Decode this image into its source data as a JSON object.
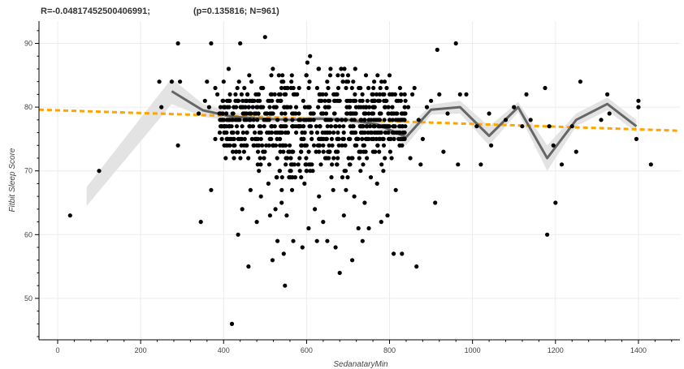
{
  "header": {
    "stat_left": "R=-0.04817452500406991;",
    "stat_right": "(p=0.135816; N=961)"
  },
  "chart_data": {
    "type": "scatter",
    "xlabel": "SedanataryMin",
    "ylabel": "Fitbit Sleep Score",
    "xlim": [
      -45,
      1500
    ],
    "ylim": [
      43.5,
      93.5
    ],
    "xticks": [
      0,
      200,
      400,
      600,
      800,
      1000,
      1200,
      1400
    ],
    "yticks": [
      50,
      60,
      70,
      80,
      90
    ],
    "grid": true,
    "colors": {
      "points": "#000000",
      "trend": "#666666",
      "band": "#e3e3e3",
      "regression": "#ffa500"
    },
    "points": [
      [
        30,
        63
      ],
      [
        100,
        70
      ],
      [
        245,
        84
      ],
      [
        250,
        80
      ],
      [
        275,
        84
      ],
      [
        290,
        90
      ],
      [
        290,
        74
      ],
      [
        295,
        84
      ],
      [
        340,
        79
      ],
      [
        345,
        62
      ],
      [
        355,
        81
      ],
      [
        360,
        84
      ],
      [
        365,
        80
      ],
      [
        370,
        67
      ],
      [
        370,
        90
      ],
      [
        380,
        83
      ],
      [
        380,
        75
      ],
      [
        385,
        82
      ],
      [
        390,
        79
      ],
      [
        400,
        84
      ],
      [
        402,
        77
      ],
      [
        405,
        72
      ],
      [
        410,
        74
      ],
      [
        412,
        86
      ],
      [
        415,
        81
      ],
      [
        420,
        46
      ],
      [
        425,
        72
      ],
      [
        430,
        80
      ],
      [
        430,
        73
      ],
      [
        435,
        60
      ],
      [
        440,
        90
      ],
      [
        445,
        64
      ],
      [
        450,
        83
      ],
      [
        455,
        78
      ],
      [
        460,
        55
      ],
      [
        465,
        67
      ],
      [
        470,
        81
      ],
      [
        475,
        76
      ],
      [
        480,
        62
      ],
      [
        485,
        70
      ],
      [
        490,
        66
      ],
      [
        495,
        73
      ],
      [
        500,
        91
      ],
      [
        505,
        79
      ],
      [
        508,
        68
      ],
      [
        512,
        63
      ],
      [
        515,
        85
      ],
      [
        518,
        56
      ],
      [
        520,
        74
      ],
      [
        525,
        64
      ],
      [
        530,
        59
      ],
      [
        535,
        70
      ],
      [
        538,
        77
      ],
      [
        540,
        65
      ],
      [
        545,
        57
      ],
      [
        548,
        52
      ],
      [
        552,
        63
      ],
      [
        555,
        80
      ],
      [
        558,
        69
      ],
      [
        562,
        72
      ],
      [
        565,
        67
      ],
      [
        568,
        59
      ],
      [
        572,
        82
      ],
      [
        575,
        76
      ],
      [
        580,
        71
      ],
      [
        585,
        78
      ],
      [
        590,
        58
      ],
      [
        595,
        68
      ],
      [
        600,
        74
      ],
      [
        605,
        61
      ],
      [
        610,
        79
      ],
      [
        615,
        70
      ],
      [
        620,
        64
      ],
      [
        625,
        59
      ],
      [
        630,
        66
      ],
      [
        635,
        75
      ],
      [
        640,
        62
      ],
      [
        645,
        72
      ],
      [
        650,
        59
      ],
      [
        655,
        81
      ],
      [
        660,
        69
      ],
      [
        665,
        76
      ],
      [
        670,
        58
      ],
      [
        675,
        73
      ],
      [
        680,
        54
      ],
      [
        685,
        78
      ],
      [
        690,
        63
      ],
      [
        695,
        67
      ],
      [
        700,
        85
      ],
      [
        705,
        71
      ],
      [
        710,
        56
      ],
      [
        715,
        66
      ],
      [
        720,
        74
      ],
      [
        725,
        61
      ],
      [
        730,
        70
      ],
      [
        735,
        59
      ],
      [
        740,
        65
      ],
      [
        745,
        77
      ],
      [
        750,
        61
      ],
      [
        755,
        69
      ],
      [
        760,
        82
      ],
      [
        765,
        73
      ],
      [
        770,
        68
      ],
      [
        775,
        75
      ],
      [
        780,
        62
      ],
      [
        785,
        70
      ],
      [
        790,
        76
      ],
      [
        795,
        63
      ],
      [
        800,
        85
      ],
      [
        805,
        72
      ],
      [
        810,
        57
      ],
      [
        815,
        67
      ],
      [
        820,
        78
      ],
      [
        825,
        74
      ],
      [
        830,
        57
      ],
      [
        835,
        76
      ],
      [
        845,
        80
      ],
      [
        850,
        72
      ],
      [
        855,
        82
      ],
      [
        860,
        83
      ],
      [
        865,
        55
      ],
      [
        870,
        78
      ],
      [
        875,
        71
      ],
      [
        880,
        75
      ],
      [
        890,
        80
      ],
      [
        900,
        81
      ],
      [
        910,
        65
      ],
      [
        915,
        89
      ],
      [
        920,
        82
      ],
      [
        930,
        73
      ],
      [
        940,
        79
      ],
      [
        960,
        90
      ],
      [
        965,
        71
      ],
      [
        970,
        82
      ],
      [
        985,
        82
      ],
      [
        1010,
        77
      ],
      [
        1020,
        71
      ],
      [
        1040,
        79
      ],
      [
        1045,
        74
      ],
      [
        1080,
        78
      ],
      [
        1100,
        80
      ],
      [
        1120,
        77
      ],
      [
        1130,
        82
      ],
      [
        1140,
        78
      ],
      [
        1175,
        83
      ],
      [
        1180,
        60
      ],
      [
        1185,
        77
      ],
      [
        1195,
        74
      ],
      [
        1200,
        65
      ],
      [
        1215,
        71
      ],
      [
        1240,
        77
      ],
      [
        1250,
        73
      ],
      [
        1260,
        84
      ],
      [
        1310,
        78
      ],
      [
        1325,
        82
      ],
      [
        1330,
        79
      ],
      [
        1395,
        75
      ],
      [
        1400,
        81
      ],
      [
        1400,
        80
      ],
      [
        1430,
        71
      ]
    ],
    "dense_cluster": {
      "x_range": [
        390,
        840
      ],
      "y_range": [
        63,
        88
      ],
      "note": "dense cloud of points with integer sleep scores"
    },
    "trend_line": [
      [
        275,
        82.5
      ],
      [
        350,
        79.5
      ],
      [
        420,
        78.5
      ],
      [
        490,
        78.2
      ],
      [
        560,
        78.0
      ],
      [
        630,
        78.2
      ],
      [
        700,
        78.0
      ],
      [
        770,
        77.3
      ],
      [
        840,
        75.3
      ],
      [
        900,
        79.6
      ],
      [
        970,
        80.0
      ],
      [
        1040,
        75.5
      ],
      [
        1110,
        80.0
      ],
      [
        1180,
        72.0
      ],
      [
        1250,
        78.0
      ],
      [
        1325,
        80.5
      ],
      [
        1395,
        77.0
      ]
    ],
    "confidence_band": {
      "upper": [
        [
          70,
          67.5
        ],
        [
          275,
          84.5
        ],
        [
          350,
          80.5
        ],
        [
          420,
          79.2
        ],
        [
          490,
          78.7
        ],
        [
          560,
          78.5
        ],
        [
          630,
          78.6
        ],
        [
          700,
          78.5
        ],
        [
          770,
          78.0
        ],
        [
          840,
          76.5
        ],
        [
          900,
          80.4
        ],
        [
          970,
          81.0
        ],
        [
          1040,
          77.0
        ],
        [
          1110,
          80.8
        ],
        [
          1180,
          74.0
        ],
        [
          1250,
          79.0
        ],
        [
          1325,
          81.5
        ],
        [
          1395,
          78.0
        ]
      ],
      "lower": [
        [
          70,
          64.5
        ],
        [
          275,
          80.5
        ],
        [
          350,
          78.5
        ],
        [
          420,
          77.8
        ],
        [
          490,
          77.7
        ],
        [
          560,
          77.5
        ],
        [
          630,
          77.8
        ],
        [
          700,
          77.5
        ],
        [
          770,
          76.6
        ],
        [
          840,
          74.0
        ],
        [
          900,
          78.8
        ],
        [
          970,
          79.0
        ],
        [
          1040,
          74.0
        ],
        [
          1110,
          79.2
        ],
        [
          1180,
          70.0
        ],
        [
          1250,
          77.0
        ],
        [
          1325,
          79.5
        ],
        [
          1395,
          76.0
        ]
      ]
    },
    "regression_line": [
      [
        -45,
        79.6
      ],
      [
        1500,
        76.3
      ]
    ]
  }
}
